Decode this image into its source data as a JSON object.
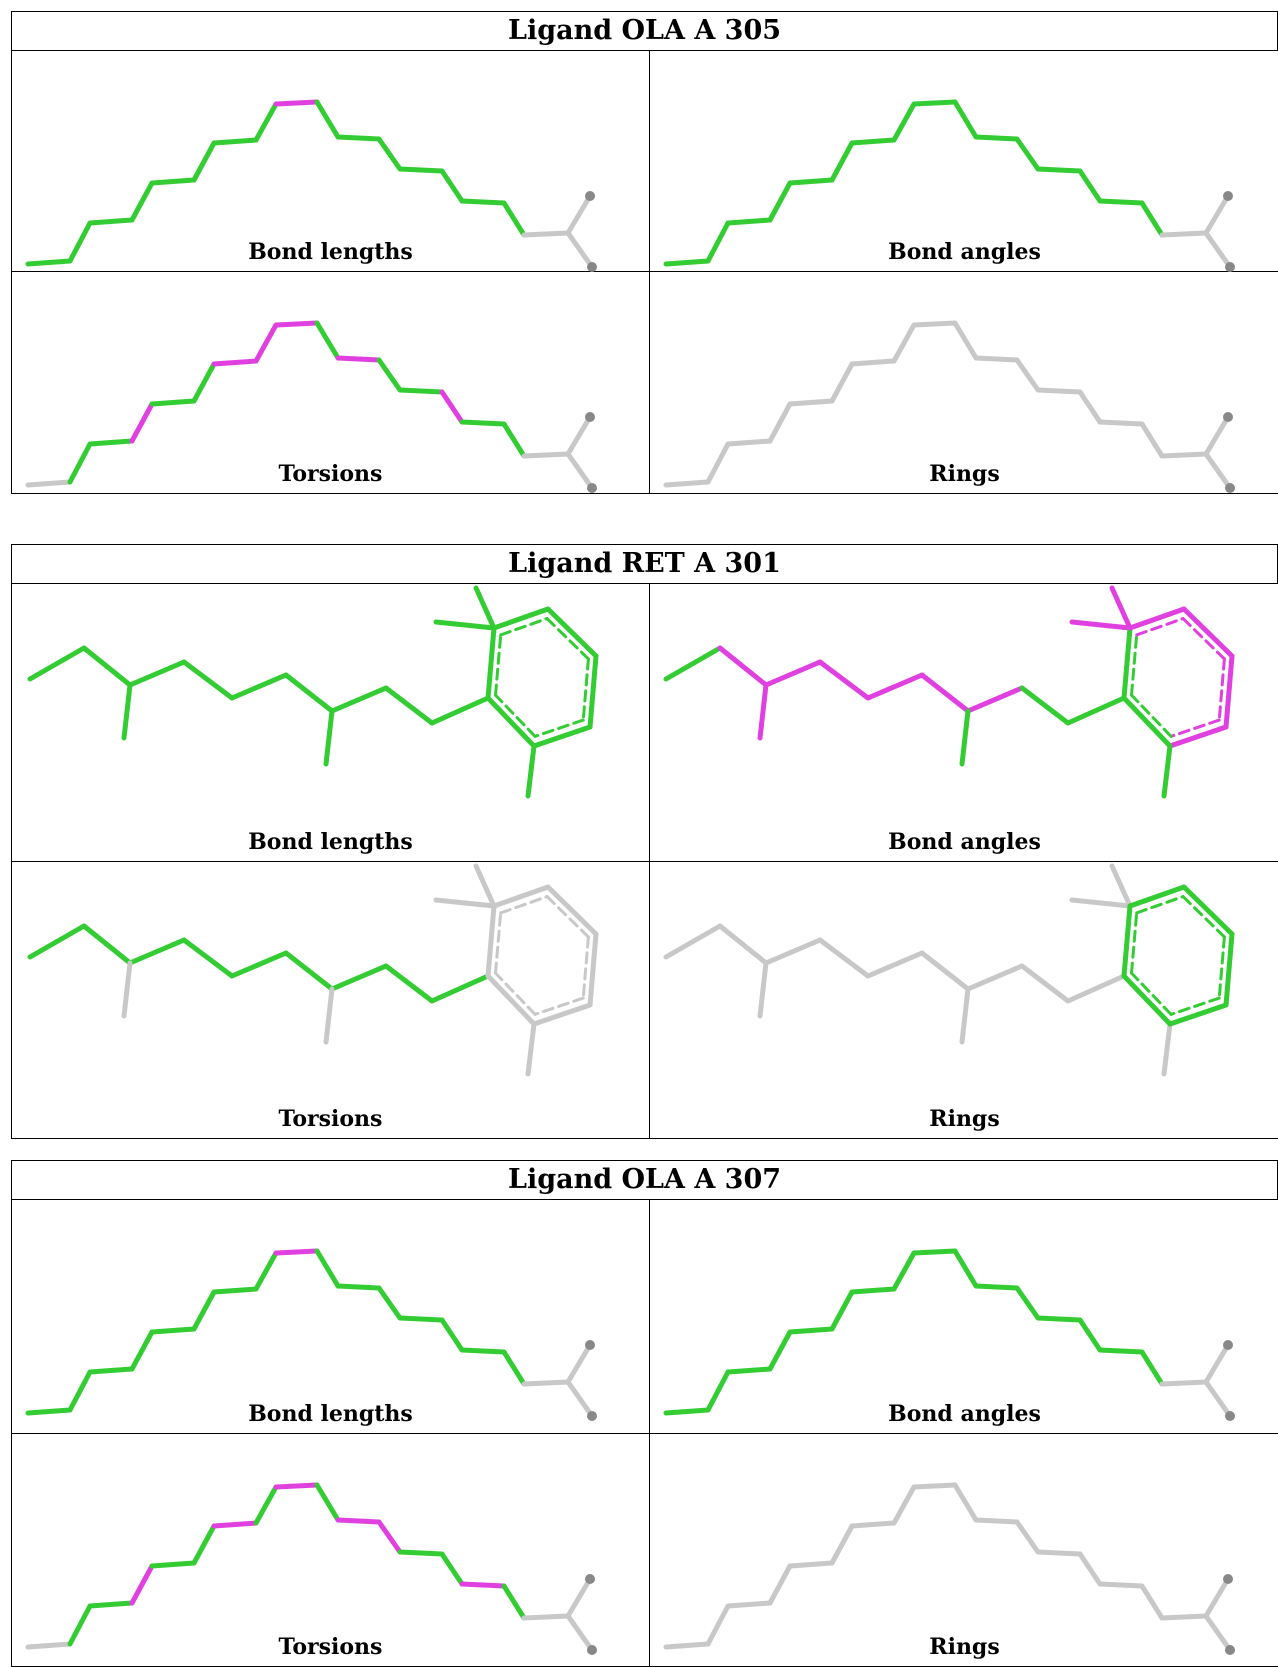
{
  "colors": {
    "green": "#33cc33",
    "magenta": "#e040e0",
    "grey": "#c8c8c8",
    "atom": "#888888"
  },
  "ligands": [
    {
      "title": "Ligand OLA A 305",
      "kind": "ola",
      "panels": [
        {
          "label": "Bond lengths",
          "hl": [
            8
          ]
        },
        {
          "label": "Bond angles",
          "hl": []
        },
        {
          "label": "Torsions",
          "hl": [
            3,
            6,
            7,
            8,
            10,
            13
          ]
        },
        {
          "label": "Rings",
          "hl": []
        }
      ]
    },
    {
      "title": "Ligand RET A 301",
      "kind": "ret",
      "panels": [
        {
          "label": "Bond lengths"
        },
        {
          "label": "Bond angles"
        },
        {
          "label": "Torsions"
        },
        {
          "label": "Rings"
        }
      ]
    },
    {
      "title": "Ligand OLA A 307",
      "kind": "ola",
      "panels": [
        {
          "label": "Bond lengths",
          "hl": [
            8
          ]
        },
        {
          "label": "Bond angles",
          "hl": []
        },
        {
          "label": "Torsions",
          "hl": [
            3,
            6,
            8,
            10,
            11,
            14
          ]
        },
        {
          "label": "Rings",
          "hl": []
        }
      ]
    }
  ]
}
